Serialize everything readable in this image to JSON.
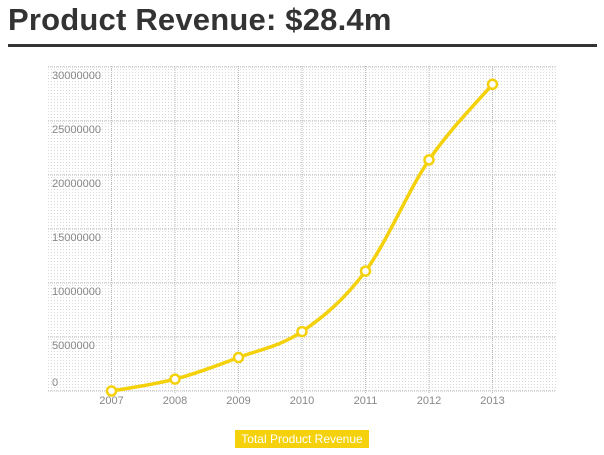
{
  "chart_data": {
    "type": "line",
    "title": "Product Revenue: $28.4m",
    "categories": [
      "2007",
      "2008",
      "2009",
      "2010",
      "2011",
      "2012",
      "2013"
    ],
    "series": [
      {
        "name": "Total Product Revenue",
        "color": "#f5d10c",
        "values": [
          0,
          1100000,
          3100000,
          5500000,
          11100000,
          21400000,
          28400000
        ]
      }
    ],
    "ylim": [
      0,
      30000000
    ],
    "yticks": [
      0,
      5000000,
      10000000,
      15000000,
      20000000,
      25000000,
      30000000
    ],
    "grid": true
  }
}
